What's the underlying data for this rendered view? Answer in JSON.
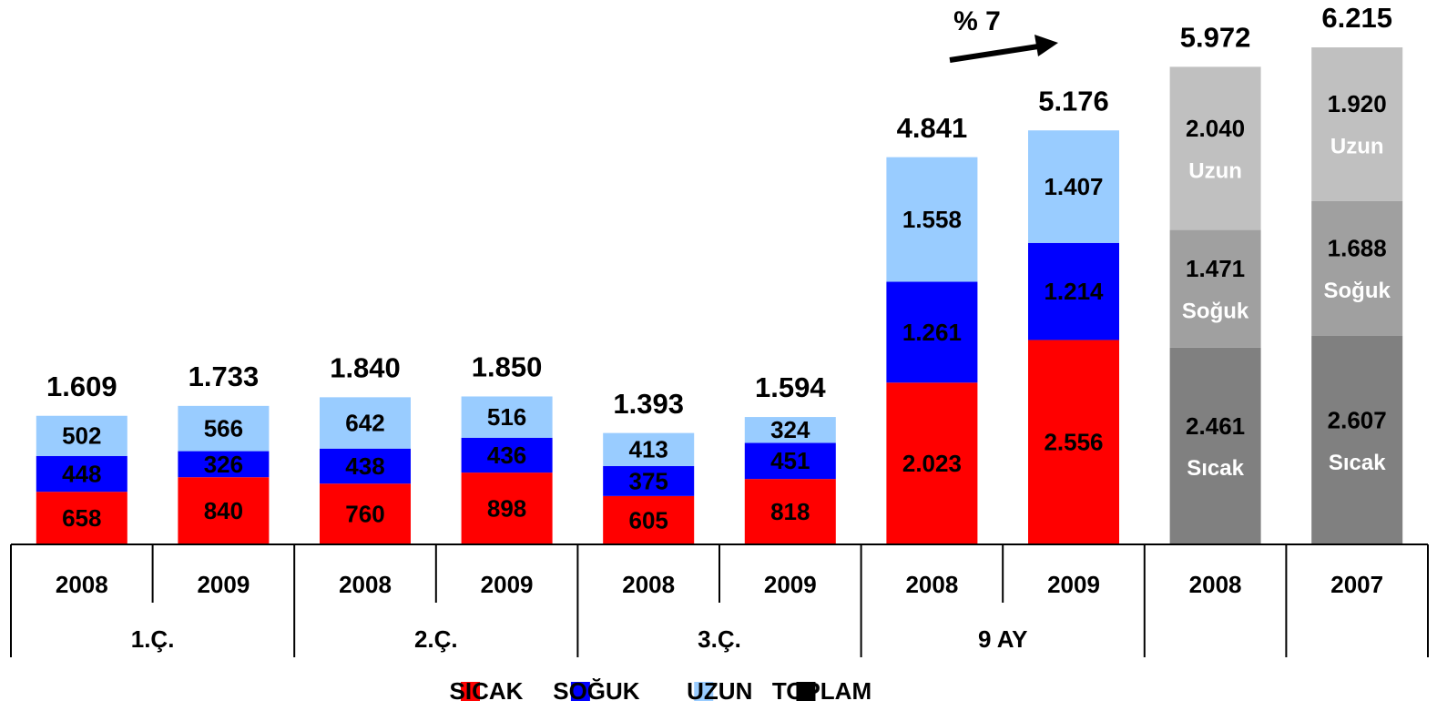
{
  "chart_data": {
    "type": "stacked_bar",
    "annotation": "% 7",
    "categories": [
      "2008",
      "2009",
      "2008",
      "2009",
      "2008",
      "2009",
      "2008",
      "2009",
      "2008",
      "2007"
    ],
    "groups": [
      {
        "label": "1.Ç.",
        "count": 2
      },
      {
        "label": "2.Ç.",
        "count": 2
      },
      {
        "label": "3.Ç.",
        "count": 2
      },
      {
        "label": "9 AY",
        "count": 2
      },
      {
        "label": null,
        "count": 1
      },
      {
        "label": null,
        "count": 1
      }
    ],
    "ylim": [
      0,
      6500
    ],
    "series": [
      {
        "name": "SICAK",
        "color": "#ff0000",
        "colors": [
          "#ff0000",
          "#ff0000",
          "#ff0000",
          "#ff0000",
          "#ff0000",
          "#ff0000",
          "#ff0000",
          "#ff0000",
          "#808080",
          "#808080"
        ],
        "values": [
          658,
          840,
          760,
          898,
          605,
          818,
          2023,
          2556,
          2461,
          2607
        ],
        "value_labels": [
          "658",
          "840",
          "760",
          "898",
          "605",
          "818",
          "2.023",
          "2.556",
          "2.461",
          "2.607"
        ],
        "inner_labels": [
          null,
          null,
          null,
          null,
          null,
          null,
          null,
          null,
          "Sıcak",
          "Sıcak"
        ]
      },
      {
        "name": "SOĞUK",
        "color": "#0000ff",
        "colors": [
          "#0000ff",
          "#0000ff",
          "#0000ff",
          "#0000ff",
          "#0000ff",
          "#0000ff",
          "#0000ff",
          "#0000ff",
          "#a0a0a0",
          "#a0a0a0"
        ],
        "values": [
          448,
          326,
          438,
          436,
          375,
          451,
          1261,
          1214,
          1471,
          1688
        ],
        "value_labels": [
          "448",
          "326",
          "438",
          "436",
          "375",
          "451",
          "1.261",
          "1.214",
          "1.471",
          "1.688"
        ],
        "inner_labels": [
          null,
          null,
          null,
          null,
          null,
          null,
          null,
          null,
          "Soğuk",
          "Soğuk"
        ]
      },
      {
        "name": "UZUN",
        "color": "#99ccff",
        "colors": [
          "#99ccff",
          "#99ccff",
          "#99ccff",
          "#99ccff",
          "#99ccff",
          "#99ccff",
          "#99ccff",
          "#99ccff",
          "#c0c0c0",
          "#c0c0c0"
        ],
        "values": [
          502,
          566,
          642,
          516,
          413,
          324,
          1558,
          1407,
          2040,
          1920
        ],
        "value_labels": [
          "502",
          "566",
          "642",
          "516",
          "413",
          "324",
          "1.558",
          "1.407",
          "2.040",
          "1.920"
        ],
        "inner_labels": [
          null,
          null,
          null,
          null,
          null,
          null,
          null,
          null,
          "Uzun",
          "Uzun"
        ]
      }
    ],
    "total": {
      "name": "TOPLAM",
      "color": "#000000",
      "values": [
        1609,
        1733,
        1840,
        1850,
        1393,
        1594,
        4841,
        5176,
        5972,
        6215
      ],
      "value_labels": [
        "1.609",
        "1.733",
        "1.840",
        "1.850",
        "1.393",
        "1.594",
        "4.841",
        "5.176",
        "5.972",
        "6.215"
      ]
    }
  }
}
